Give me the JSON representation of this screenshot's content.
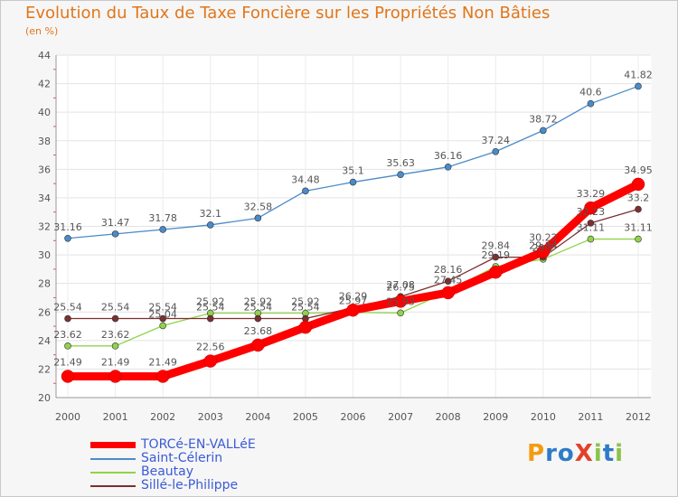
{
  "chart_data": {
    "type": "line",
    "title": "Evolution du Taux de Taxe Foncière sur les Propriétés Non Bâties",
    "subtitle": "(en %)",
    "x": [
      "2000",
      "2001",
      "2002",
      "2003",
      "2004",
      "2005",
      "2006",
      "2007",
      "2008",
      "2009",
      "2010",
      "2011",
      "2012"
    ],
    "ylim": [
      20,
      44
    ],
    "yticks": [
      20,
      22,
      24,
      26,
      28,
      30,
      32,
      34,
      36,
      38,
      40,
      42,
      44
    ],
    "grid": true,
    "legend_position": "bottom-left",
    "series": [
      {
        "name": "TORCé-EN-VALLéE",
        "color": "#ff0000",
        "values": [
          21.49,
          21.49,
          21.49,
          22.56,
          23.68,
          24.93,
          26.13,
          26.75,
          27.35,
          28.79,
          30.22,
          33.29,
          34.95
        ],
        "labels": [
          "21.49",
          "21.49",
          "21.49",
          "22.56",
          "23.68",
          "",
          "",
          "26.75",
          "",
          "",
          "30.22",
          "33.29",
          "34.95"
        ]
      },
      {
        "name": "Saint-Célerin",
        "color": "#4a8bc8",
        "values": [
          31.16,
          31.47,
          31.78,
          32.1,
          32.58,
          34.48,
          35.1,
          35.63,
          36.16,
          37.24,
          38.72,
          40.6,
          41.82
        ],
        "labels": [
          "31.16",
          "31.47",
          "31.78",
          "32.1",
          "32.58",
          "34.48",
          "35.1",
          "35.63",
          "36.16",
          "37.24",
          "38.72",
          "40.6",
          "41.82"
        ]
      },
      {
        "name": "Beautay",
        "color": "#8fd34b",
        "values": [
          23.62,
          23.62,
          25.04,
          25.92,
          25.92,
          25.92,
          25.97,
          25.93,
          27.45,
          29.19,
          29.7,
          31.11,
          31.11
        ],
        "labels": [
          "23.62",
          "23.62",
          "25.04",
          "25.92",
          "25.92",
          "25.92",
          "25.97",
          "25.93",
          "27.45",
          "29.19",
          "29.7",
          "31.11",
          "31.11"
        ]
      },
      {
        "name": "Sillé-le-Philippe",
        "color": "#7b2f2f",
        "values": [
          25.54,
          25.54,
          25.54,
          25.54,
          25.54,
          25.54,
          26.29,
          27.08,
          28.16,
          29.84,
          29.84,
          32.23,
          33.2
        ],
        "labels": [
          "25.54",
          "25.54",
          "25.54",
          "25.54",
          "25.54",
          "25.54",
          "26.29",
          "27.08",
          "28.16",
          "29.84",
          "29.84",
          "32.23",
          "33.2"
        ]
      }
    ]
  },
  "logo": {
    "text": "ProXiti"
  }
}
